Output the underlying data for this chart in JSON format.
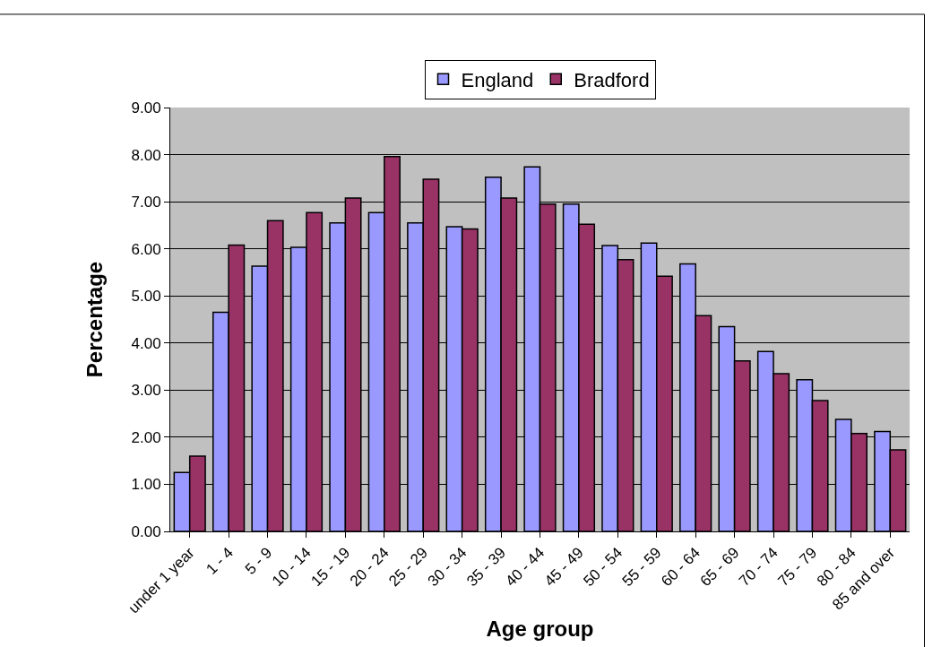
{
  "chart_data": {
    "type": "bar",
    "xlabel": "Age group",
    "ylabel": "Percentage",
    "categories": [
      "under 1 year",
      "1 - 4",
      "5 - 9",
      "10 - 14",
      "15 - 19",
      "20 - 24",
      "25 - 29",
      "30 - 34",
      "35 - 39",
      "40 - 44",
      "45 - 49",
      "50 - 54",
      "55 - 59",
      "60 - 64",
      "65 - 69",
      "70 - 74",
      "75 - 79",
      "80 - 84",
      "85 and over"
    ],
    "series": [
      {
        "name": "England",
        "color": "#9999ff",
        "values": [
          1.25,
          4.65,
          5.63,
          6.03,
          6.55,
          6.77,
          6.55,
          6.47,
          7.52,
          7.74,
          6.95,
          6.07,
          6.12,
          5.68,
          4.35,
          3.82,
          3.22,
          2.38,
          2.12
        ]
      },
      {
        "name": "Bradford",
        "color": "#993366",
        "values": [
          1.6,
          6.08,
          6.6,
          6.77,
          7.08,
          7.96,
          7.48,
          6.42,
          7.08,
          6.95,
          6.52,
          5.77,
          5.42,
          4.58,
          3.62,
          3.35,
          2.78,
          2.08,
          1.73
        ]
      }
    ],
    "ylim": [
      0,
      9
    ],
    "yticks": [
      {
        "value": 0,
        "label": "0.00"
      },
      {
        "value": 1,
        "label": "1.00"
      },
      {
        "value": 2,
        "label": "2.00"
      },
      {
        "value": 3,
        "label": "3.00"
      },
      {
        "value": 4,
        "label": "4.00"
      },
      {
        "value": 5,
        "label": "5.00"
      },
      {
        "value": 6,
        "label": "6.00"
      },
      {
        "value": 7,
        "label": "7.00"
      },
      {
        "value": 8,
        "label": "8.00"
      },
      {
        "value": 9,
        "label": "9.00"
      }
    ],
    "grid": "y",
    "legend": "top"
  }
}
